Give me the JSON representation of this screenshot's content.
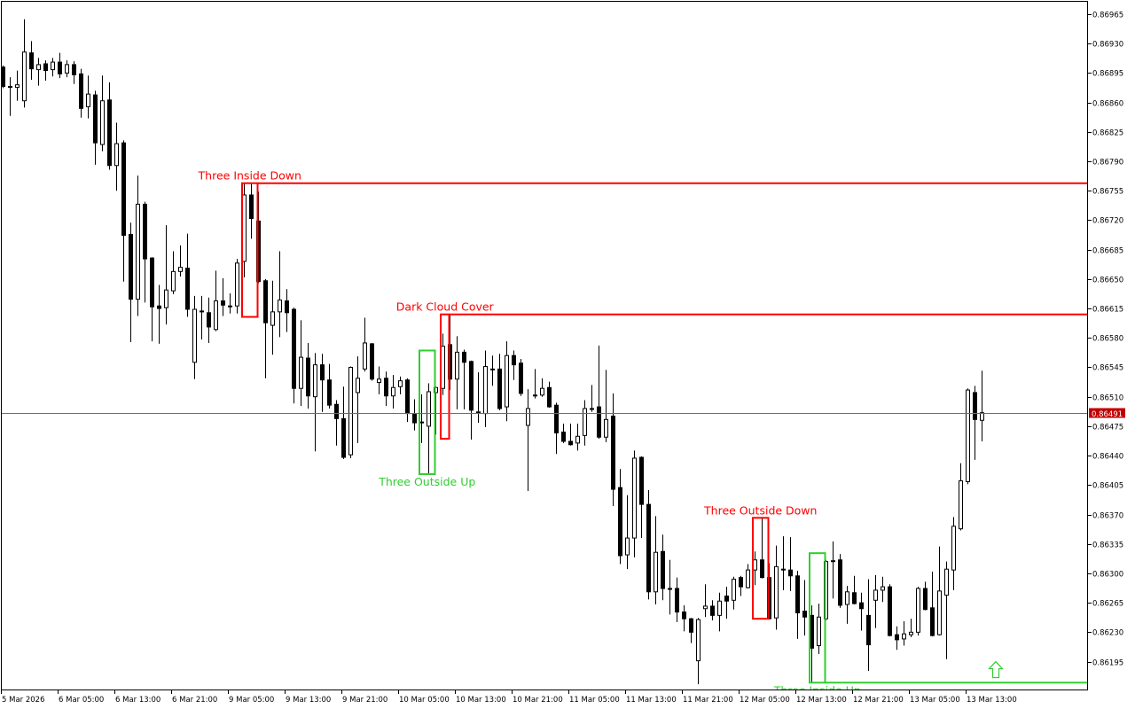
{
  "chart_data": {
    "type": "candlestick",
    "symbol_timeframe": "",
    "y_axis": {
      "ticks": [
        "0.86965",
        "0.86930",
        "0.86895",
        "0.86860",
        "0.86825",
        "0.86790",
        "0.86755",
        "0.86720",
        "0.86685",
        "0.86650",
        "0.86615",
        "0.86580",
        "0.86545",
        "0.86510",
        "0.86475",
        "0.86440",
        "0.86405",
        "0.86370",
        "0.86335",
        "0.86300",
        "0.86265",
        "0.86230",
        "0.86195"
      ],
      "ylim": [
        0.8612,
        0.8698
      ]
    },
    "x_axis": {
      "ticks": [
        "5 Mar 2026",
        "6 Mar 05:00",
        "6 Mar 13:00",
        "6 Mar 21:00",
        "9 Mar 05:00",
        "9 Mar 13:00",
        "9 Mar 21:00",
        "10 Mar 05:00",
        "10 Mar 13:00",
        "10 Mar 21:00",
        "11 Mar 05:00",
        "11 Mar 13:00",
        "11 Mar 21:00",
        "12 Mar 05:00",
        "12 Mar 13:00",
        "12 Mar 21:00",
        "13 Mar 05:00",
        "13 Mar 13:00"
      ],
      "bars_per_tick": 8
    },
    "current_price": {
      "value": 0.86491,
      "label": "0.86491",
      "color": "#c00000"
    },
    "colors": {
      "bull_body": "#ffffff",
      "bear_body": "#000000",
      "wick": "#000000",
      "bearish_pattern": "#ff0000",
      "bullish_pattern": "#32cd32",
      "price_line": "#6e6e6e"
    },
    "ohlc_fields": [
      "open",
      "high",
      "low",
      "close"
    ],
    "candles": [
      [
        0.86902,
        0.86904,
        0.86877,
        0.86879
      ],
      [
        0.86879,
        0.8689,
        0.86844,
        0.86879
      ],
      [
        0.86878,
        0.86898,
        0.86862,
        0.86881
      ],
      [
        0.86862,
        0.86959,
        0.86854,
        0.8692
      ],
      [
        0.86919,
        0.86933,
        0.86887,
        0.869
      ],
      [
        0.86899,
        0.86913,
        0.8688,
        0.86905
      ],
      [
        0.86906,
        0.8691,
        0.86886,
        0.86898
      ],
      [
        0.86899,
        0.86913,
        0.86891,
        0.86908
      ],
      [
        0.86908,
        0.86919,
        0.86889,
        0.86894
      ],
      [
        0.86895,
        0.8691,
        0.8689,
        0.86905
      ],
      [
        0.86905,
        0.86909,
        0.86882,
        0.86893
      ],
      [
        0.86894,
        0.869,
        0.86842,
        0.86853
      ],
      [
        0.86855,
        0.86892,
        0.86841,
        0.8687
      ],
      [
        0.86869,
        0.86874,
        0.86786,
        0.86812
      ],
      [
        0.8681,
        0.86892,
        0.86802,
        0.86862
      ],
      [
        0.86863,
        0.86884,
        0.8678,
        0.86785
      ],
      [
        0.86785,
        0.86836,
        0.86755,
        0.86811
      ],
      [
        0.86812,
        0.86815,
        0.86647,
        0.86702
      ],
      [
        0.86703,
        0.86717,
        0.86575,
        0.86626
      ],
      [
        0.86626,
        0.86773,
        0.86606,
        0.86739
      ],
      [
        0.86739,
        0.86742,
        0.86622,
        0.86674
      ],
      [
        0.86675,
        0.86676,
        0.86576,
        0.86617
      ],
      [
        0.86618,
        0.86643,
        0.86573,
        0.86615
      ],
      [
        0.86616,
        0.86714,
        0.86596,
        0.86637
      ],
      [
        0.86636,
        0.86683,
        0.86632,
        0.86659
      ],
      [
        0.86659,
        0.8669,
        0.86653,
        0.86664
      ],
      [
        0.86663,
        0.86704,
        0.86605,
        0.86614
      ],
      [
        0.86551,
        0.8663,
        0.86531,
        0.86614
      ],
      [
        0.86612,
        0.8663,
        0.86578,
        0.86612
      ],
      [
        0.8661,
        0.86628,
        0.86574,
        0.86593
      ],
      [
        0.8659,
        0.8666,
        0.86588,
        0.86624
      ],
      [
        0.86624,
        0.86651,
        0.86606,
        0.86619
      ],
      [
        0.86618,
        0.86633,
        0.86609,
        0.86618
      ],
      [
        0.86618,
        0.86674,
        0.86609,
        0.86669
      ],
      [
        0.86671,
        0.86764,
        0.86652,
        0.8675
      ],
      [
        0.8675,
        0.86764,
        0.86698,
        0.86722
      ],
      [
        0.86719,
        0.86754,
        0.86645,
        0.86647
      ],
      [
        0.86648,
        0.8665,
        0.86532,
        0.86598
      ],
      [
        0.86595,
        0.86648,
        0.8656,
        0.86611
      ],
      [
        0.86611,
        0.86683,
        0.86581,
        0.86625
      ],
      [
        0.86624,
        0.86638,
        0.86587,
        0.8661
      ],
      [
        0.86614,
        0.86616,
        0.86502,
        0.8652
      ],
      [
        0.8652,
        0.86601,
        0.86499,
        0.86557
      ],
      [
        0.86556,
        0.86574,
        0.86496,
        0.86511
      ],
      [
        0.8651,
        0.86562,
        0.86445,
        0.86548
      ],
      [
        0.86548,
        0.86561,
        0.86492,
        0.8653
      ],
      [
        0.8653,
        0.86549,
        0.86496,
        0.865
      ],
      [
        0.86501,
        0.86506,
        0.86452,
        0.86484
      ],
      [
        0.86484,
        0.86522,
        0.86436,
        0.86438
      ],
      [
        0.86441,
        0.86546,
        0.86437,
        0.86545
      ],
      [
        0.86515,
        0.86558,
        0.86455,
        0.86532
      ],
      [
        0.86543,
        0.86604,
        0.8654,
        0.86574
      ],
      [
        0.86573,
        0.86574,
        0.86529,
        0.86531
      ],
      [
        0.86527,
        0.86546,
        0.86513,
        0.86531
      ],
      [
        0.86532,
        0.8654,
        0.86499,
        0.86511
      ],
      [
        0.86511,
        0.86536,
        0.86496,
        0.86521
      ],
      [
        0.86522,
        0.86534,
        0.86513,
        0.86529
      ],
      [
        0.8653,
        0.86532,
        0.8648,
        0.8649
      ],
      [
        0.8649,
        0.86507,
        0.8647,
        0.86479
      ],
      [
        0.8648,
        0.86513,
        0.86455,
        0.8648
      ],
      [
        0.86475,
        0.86526,
        0.86418,
        0.86516
      ],
      [
        0.86515,
        0.86522,
        0.86465,
        0.86521
      ],
      [
        0.8652,
        0.86585,
        0.86512,
        0.8657
      ],
      [
        0.86572,
        0.86607,
        0.86518,
        0.86531
      ],
      [
        0.86531,
        0.86582,
        0.86495,
        0.86563
      ],
      [
        0.86563,
        0.86566,
        0.86495,
        0.86551
      ],
      [
        0.86552,
        0.86553,
        0.86459,
        0.86494
      ],
      [
        0.86492,
        0.86539,
        0.86479,
        0.86492
      ],
      [
        0.8649,
        0.86565,
        0.86474,
        0.86546
      ],
      [
        0.86543,
        0.86559,
        0.86523,
        0.86543
      ],
      [
        0.86543,
        0.86561,
        0.86494,
        0.86496
      ],
      [
        0.86498,
        0.86576,
        0.86481,
        0.86559
      ],
      [
        0.86559,
        0.86565,
        0.8653,
        0.86548
      ],
      [
        0.8655,
        0.86555,
        0.86511,
        0.86514
      ],
      [
        0.86476,
        0.86519,
        0.86398,
        0.86496
      ],
      [
        0.86512,
        0.86543,
        0.86508,
        0.86512
      ],
      [
        0.86512,
        0.86532,
        0.8651,
        0.8652
      ],
      [
        0.86521,
        0.86528,
        0.86497,
        0.86498
      ],
      [
        0.865,
        0.86503,
        0.86442,
        0.86467
      ],
      [
        0.86468,
        0.86478,
        0.86455,
        0.86457
      ],
      [
        0.86457,
        0.86478,
        0.86452,
        0.86453
      ],
      [
        0.86455,
        0.86478,
        0.86446,
        0.86463
      ],
      [
        0.86464,
        0.86506,
        0.86452,
        0.86496
      ],
      [
        0.86496,
        0.86524,
        0.86492,
        0.86496
      ],
      [
        0.86498,
        0.86571,
        0.8646,
        0.86462
      ],
      [
        0.86462,
        0.86542,
        0.86456,
        0.86483
      ],
      [
        0.86487,
        0.86514,
        0.8638,
        0.864
      ],
      [
        0.86402,
        0.86424,
        0.86311,
        0.86321
      ],
      [
        0.86322,
        0.86393,
        0.86305,
        0.86342
      ],
      [
        0.86342,
        0.86446,
        0.86319,
        0.86437
      ],
      [
        0.86438,
        0.86439,
        0.86342,
        0.86382
      ],
      [
        0.86382,
        0.86399,
        0.86269,
        0.86278
      ],
      [
        0.86278,
        0.86368,
        0.86263,
        0.86325
      ],
      [
        0.86326,
        0.86346,
        0.86268,
        0.86282
      ],
      [
        0.86282,
        0.86316,
        0.86251,
        0.86282
      ],
      [
        0.86282,
        0.86295,
        0.86242,
        0.86254
      ],
      [
        0.86254,
        0.86262,
        0.86231,
        0.86246
      ],
      [
        0.86246,
        0.86247,
        0.86217,
        0.8623
      ],
      [
        0.86196,
        0.86247,
        0.86168,
        0.86245
      ],
      [
        0.86258,
        0.86287,
        0.86248,
        0.86261
      ],
      [
        0.86261,
        0.86268,
        0.86244,
        0.8625
      ],
      [
        0.8625,
        0.86277,
        0.86231,
        0.86267
      ],
      [
        0.86273,
        0.86284,
        0.86246,
        0.86267
      ],
      [
        0.86268,
        0.86296,
        0.86257,
        0.86293
      ],
      [
        0.86295,
        0.86297,
        0.86273,
        0.86284
      ],
      [
        0.86283,
        0.86311,
        0.86282,
        0.86304
      ],
      [
        0.86304,
        0.86326,
        0.86286,
        0.86316
      ],
      [
        0.86316,
        0.86367,
        0.86294,
        0.86295
      ],
      [
        0.86295,
        0.86312,
        0.86245,
        0.86246
      ],
      [
        0.86247,
        0.86333,
        0.86233,
        0.86308
      ],
      [
        0.86305,
        0.86344,
        0.8628,
        0.86305
      ],
      [
        0.86304,
        0.86343,
        0.86279,
        0.86297
      ],
      [
        0.86297,
        0.86303,
        0.86222,
        0.86253
      ],
      [
        0.86255,
        0.86292,
        0.86226,
        0.86248
      ],
      [
        0.8625,
        0.86262,
        0.8617,
        0.86211
      ],
      [
        0.86214,
        0.86264,
        0.86204,
        0.86248
      ],
      [
        0.86246,
        0.86316,
        0.86244,
        0.86314
      ],
      [
        0.86315,
        0.86338,
        0.8627,
        0.86315
      ],
      [
        0.86316,
        0.86323,
        0.86259,
        0.86262
      ],
      [
        0.86263,
        0.86285,
        0.8624,
        0.86278
      ],
      [
        0.86277,
        0.86297,
        0.86263,
        0.86264
      ],
      [
        0.86265,
        0.86277,
        0.86232,
        0.86258
      ],
      [
        0.8625,
        0.86293,
        0.86184,
        0.86215
      ],
      [
        0.86268,
        0.86298,
        0.86235,
        0.8628
      ],
      [
        0.8628,
        0.86296,
        0.86266,
        0.86284
      ],
      [
        0.86284,
        0.86287,
        0.86225,
        0.86226
      ],
      [
        0.86227,
        0.86237,
        0.86209,
        0.86221
      ],
      [
        0.86222,
        0.86243,
        0.86214,
        0.86228
      ],
      [
        0.86227,
        0.86246,
        0.86224,
        0.8623
      ],
      [
        0.8623,
        0.86284,
        0.86226,
        0.86282
      ],
      [
        0.86282,
        0.8629,
        0.86256,
        0.86257
      ],
      [
        0.86259,
        0.86302,
        0.86225,
        0.86226
      ],
      [
        0.86227,
        0.86332,
        0.86226,
        0.86279
      ],
      [
        0.86274,
        0.86314,
        0.86198,
        0.86305
      ],
      [
        0.86304,
        0.86367,
        0.8628,
        0.86356
      ],
      [
        0.86353,
        0.86431,
        0.86351,
        0.8641
      ],
      [
        0.86409,
        0.8652,
        0.86406,
        0.86518
      ],
      [
        0.86515,
        0.86523,
        0.86435,
        0.86483
      ],
      [
        0.86482,
        0.86541,
        0.86457,
        0.86491
      ]
    ],
    "patterns": [
      {
        "label": "Three Inside Down",
        "direction": "bearish",
        "first_bar": 34,
        "last_bar": 36,
        "top": 0.86764,
        "bottom": 0.86605,
        "level": 0.86764,
        "label_position": "above"
      },
      {
        "label": "Dark Cloud Cover",
        "direction": "bearish",
        "first_bar": 62,
        "last_bar": 63,
        "top": 0.86608,
        "bottom": 0.8646,
        "level": 0.86608,
        "label_position": "above"
      },
      {
        "label": "Three Outside Up",
        "direction": "bullish",
        "first_bar": 59,
        "last_bar": 61,
        "top": 0.86565,
        "bottom": 0.86418,
        "level": null,
        "label_position": "below"
      },
      {
        "label": "Three Outside Down",
        "direction": "bearish",
        "first_bar": 106,
        "last_bar": 108,
        "top": 0.86366,
        "bottom": 0.86246,
        "level": null,
        "label_position": "above"
      },
      {
        "label": "Three Inside Up",
        "direction": "bullish",
        "first_bar": 114,
        "last_bar": 116,
        "top": 0.86324,
        "bottom": 0.8617,
        "level": 0.8617,
        "label_position": "below"
      }
    ],
    "signal_arrow": {
      "type": "up-arrow",
      "direction": "buy",
      "bar": 140,
      "price": 0.86195
    }
  }
}
